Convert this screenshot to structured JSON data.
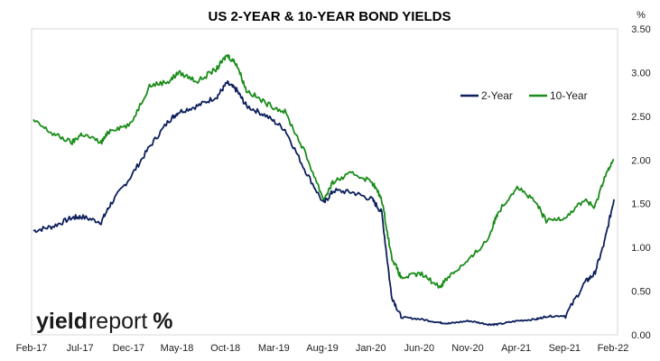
{
  "chart_data": {
    "type": "line",
    "title": "US 2-YEAR & 10-YEAR BOND YIELDS",
    "unit_label": "%",
    "xlabel": "",
    "ylabel": "",
    "x_tick_labels": [
      "Feb-17",
      "Jul-17",
      "Dec-17",
      "May-18",
      "Oct-18",
      "Mar-19",
      "Aug-19",
      "Jan-20",
      "Jun-20",
      "Nov-20",
      "Apr-21",
      "Sep-21",
      "Feb-22"
    ],
    "ylim": [
      0,
      3.5
    ],
    "y_ticks": [
      "0.00",
      "0.50",
      "1.00",
      "1.50",
      "2.00",
      "2.50",
      "3.00",
      "3.50"
    ],
    "y_axis_position": "right",
    "grid": false,
    "legend_position": "top-right",
    "x": [
      "2017-02",
      "2017-04",
      "2017-06",
      "2017-07",
      "2017-09",
      "2017-10",
      "2017-12",
      "2018-02",
      "2018-04",
      "2018-05",
      "2018-07",
      "2018-09",
      "2018-10",
      "2018-11",
      "2018-12",
      "2019-02",
      "2019-04",
      "2019-06",
      "2019-08",
      "2019-09",
      "2019-11",
      "2020-01",
      "2020-02",
      "2020-03",
      "2020-04",
      "2020-06",
      "2020-08",
      "2020-09",
      "2020-11",
      "2021-01",
      "2021-02",
      "2021-04",
      "2021-06",
      "2021-07",
      "2021-09",
      "2021-11",
      "2021-12",
      "2022-01",
      "2022-02"
    ],
    "series": [
      {
        "name": "2-Year",
        "color": "#0d1f5c",
        "values": [
          1.19,
          1.24,
          1.34,
          1.35,
          1.29,
          1.5,
          1.8,
          2.15,
          2.45,
          2.55,
          2.62,
          2.73,
          2.88,
          2.8,
          2.62,
          2.51,
          2.35,
          1.9,
          1.5,
          1.65,
          1.63,
          1.55,
          1.4,
          0.45,
          0.2,
          0.18,
          0.14,
          0.13,
          0.16,
          0.12,
          0.12,
          0.16,
          0.18,
          0.21,
          0.22,
          0.6,
          0.7,
          1.05,
          1.55
        ]
      },
      {
        "name": "10-Year",
        "color": "#1a8c1a",
        "values": [
          2.45,
          2.3,
          2.2,
          2.3,
          2.2,
          2.35,
          2.4,
          2.85,
          2.9,
          3.0,
          2.9,
          3.05,
          3.2,
          3.1,
          2.8,
          2.65,
          2.55,
          2.1,
          1.55,
          1.75,
          1.85,
          1.75,
          1.55,
          0.9,
          0.65,
          0.7,
          0.55,
          0.68,
          0.85,
          1.1,
          1.4,
          1.7,
          1.5,
          1.3,
          1.35,
          1.55,
          1.45,
          1.8,
          2.0
        ]
      }
    ]
  },
  "brand": {
    "logo_text_bold": "yield",
    "logo_text_light": "report",
    "logo_symbol": "%",
    "logo_symbol_color": "#c0161d"
  }
}
